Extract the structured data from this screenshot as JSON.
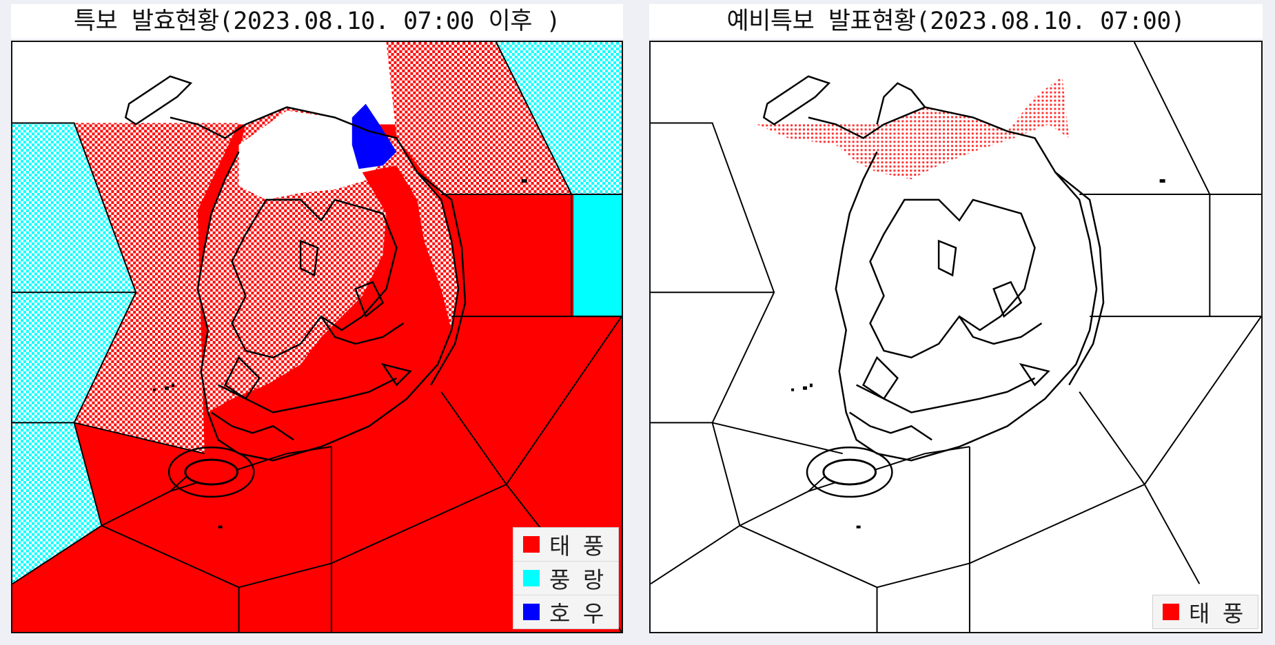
{
  "colors": {
    "typhoon": "#ff0000",
    "strong_wind": "#00ffff",
    "heavy_rain": "#0000ff",
    "land_unaffected": "#ffffff",
    "coastline": "#000000"
  },
  "left_panel": {
    "title": "특보 발효현황(2023.08.10. 07:00 이후 )",
    "legend": [
      {
        "label": "태 풍",
        "color": "#ff0000",
        "icon": "red-square"
      },
      {
        "label": "풍 랑",
        "color": "#00ffff",
        "icon": "cyan-square"
      },
      {
        "label": "호 우",
        "color": "#0000ff",
        "icon": "blue-square"
      }
    ]
  },
  "right_panel": {
    "title": "예비특보 발표현황(2023.08.10. 07:00)",
    "legend": [
      {
        "label": "태 풍",
        "color": "#ff0000",
        "icon": "red-square"
      }
    ]
  }
}
